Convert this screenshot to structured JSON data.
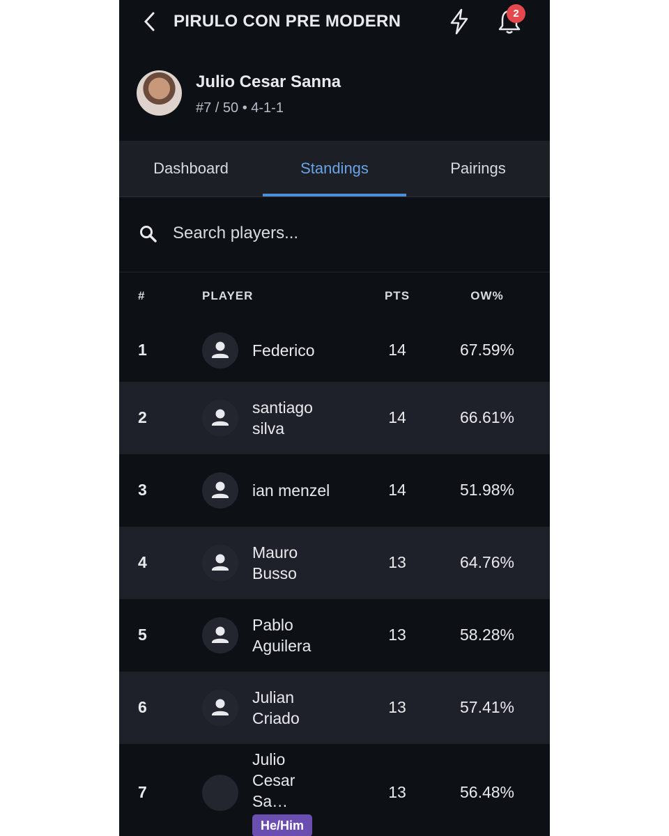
{
  "header": {
    "title": "PIRULO CON PRE MODERN",
    "notification_count": 2
  },
  "profile": {
    "name": "Julio Cesar Sanna",
    "subtitle": "#7 / 50 • 4-1-1"
  },
  "tabs": [
    "Dashboard",
    "Standings",
    "Pairings"
  ],
  "search": {
    "placeholder": "Search players..."
  },
  "table": {
    "columns": [
      "#",
      "PLAYER",
      "PTS",
      "OW%"
    ],
    "rows": [
      {
        "rank": 1,
        "name": "Federico",
        "pts": 14,
        "ow": "67.59%"
      },
      {
        "rank": 2,
        "name": "santiago silva",
        "pts": 14,
        "ow": "66.61%"
      },
      {
        "rank": 3,
        "name": "ian menzel",
        "pts": 14,
        "ow": "51.98%"
      },
      {
        "rank": 4,
        "name": "Mauro Busso",
        "pts": 13,
        "ow": "64.76%"
      },
      {
        "rank": 5,
        "name": "Pablo Aguilera",
        "pts": 13,
        "ow": "58.28%"
      },
      {
        "rank": 6,
        "name": "Julian Criado",
        "pts": 13,
        "ow": "57.41%"
      },
      {
        "rank": 7,
        "name": "Julio Cesar Sa…",
        "pts": 13,
        "ow": "56.48%",
        "badge": "He/Him"
      }
    ]
  }
}
